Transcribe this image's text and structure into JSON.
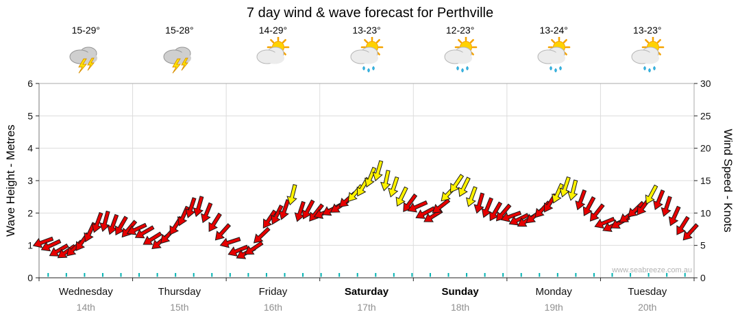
{
  "title": "7 day wind & wave forecast for Perthville",
  "watermark": "www.seabreeze.com.au",
  "days": [
    {
      "name": "Wednesday",
      "date": "14th",
      "temp": "15-29°",
      "icon": "thunderstorm",
      "bold": false
    },
    {
      "name": "Thursday",
      "date": "15th",
      "temp": "15-28°",
      "icon": "thunderstorm",
      "bold": false
    },
    {
      "name": "Friday",
      "date": "16th",
      "temp": "14-29°",
      "icon": "partly-cloudy",
      "bold": false
    },
    {
      "name": "Saturday",
      "date": "17th",
      "temp": "13-23°",
      "icon": "partly-cloudy-rain",
      "bold": true
    },
    {
      "name": "Sunday",
      "date": "18th",
      "temp": "12-23°",
      "icon": "partly-cloudy-rain",
      "bold": true
    },
    {
      "name": "Monday",
      "date": "19th",
      "temp": "13-24°",
      "icon": "partly-cloudy-rain",
      "bold": false
    },
    {
      "name": "Tuesday",
      "date": "20th",
      "temp": "13-23°",
      "icon": "partly-cloudy-rain",
      "bold": false
    }
  ],
  "chart_data": {
    "type": "scatter",
    "subtype": "wind-direction-arrows",
    "title": "7 day wind & wave forecast for Perthville",
    "left_axis": {
      "label": "Wave Height - Metres",
      "min": 0,
      "max": 6,
      "ticks": [
        0,
        1,
        2,
        3,
        4,
        5,
        6
      ]
    },
    "right_axis": {
      "label": "Wind Speed - Knots",
      "min": 0,
      "max": 30,
      "ticks": [
        0,
        5,
        10,
        15,
        20,
        25,
        30
      ]
    },
    "x_categories": [
      "Wednesday 14th",
      "Thursday 15th",
      "Friday 16th",
      "Saturday 17th",
      "Sunday 18th",
      "Monday 19th",
      "Tuesday 20th"
    ],
    "points_per_day": 12,
    "wind_knots": [
      5.5,
      5.0,
      4.2,
      4.0,
      4.5,
      5.5,
      7.0,
      8.5,
      8.7,
      8.2,
      8.0,
      7.5,
      7.5,
      7.0,
      6.0,
      5.5,
      6.5,
      8.0,
      9.5,
      10.8,
      11.0,
      10.0,
      8.5,
      7.0,
      5.5,
      4.2,
      3.8,
      4.5,
      6.5,
      9.0,
      9.7,
      10.5,
      12.8,
      10.2,
      10.5,
      10.0,
      10.0,
      10.5,
      11.0,
      12.0,
      13.0,
      14.0,
      15.5,
      16.5,
      15.0,
      14.0,
      12.5,
      11.5,
      11.0,
      10.0,
      9.5,
      11.0,
      13.0,
      14.5,
      14.0,
      12.5,
      11.5,
      10.8,
      10.2,
      10.0,
      9.5,
      9.0,
      8.8,
      9.5,
      10.5,
      11.5,
      13.0,
      14.0,
      13.5,
      12.0,
      11.0,
      10.0,
      8.5,
      8.0,
      8.5,
      9.5,
      10.5,
      11.0,
      12.8,
      12.0,
      11.0,
      9.5,
      8.0,
      7.0
    ],
    "wind_dir_deg_toward": [
      250,
      245,
      240,
      235,
      225,
      215,
      205,
      200,
      195,
      200,
      210,
      220,
      245,
      240,
      238,
      230,
      222,
      212,
      204,
      198,
      196,
      202,
      212,
      222,
      252,
      248,
      242,
      236,
      226,
      214,
      206,
      199,
      194,
      198,
      208,
      218,
      248,
      242,
      236,
      228,
      220,
      210,
      202,
      196,
      192,
      198,
      206,
      216,
      246,
      242,
      238,
      232,
      224,
      214,
      206,
      200,
      196,
      202,
      210,
      220,
      250,
      244,
      238,
      230,
      222,
      212,
      204,
      198,
      194,
      200,
      208,
      218,
      248,
      244,
      240,
      234,
      226,
      216,
      208,
      202,
      198,
      204,
      212,
      222
    ],
    "color_rule": {
      "yellow_from_knots": 12.5,
      "red": "#e60000",
      "yellow": "#fff200",
      "outline": "#1a1a1a"
    },
    "wave_height_m": {
      "note": "flat swell shown as teal ticks along baseline",
      "value": 0.1
    },
    "wave_tick_color": "#00b2b2",
    "grid": {
      "h_lines_metres": [
        1,
        2,
        3,
        4,
        5
      ],
      "v_lines_day_boundaries": true
    }
  }
}
